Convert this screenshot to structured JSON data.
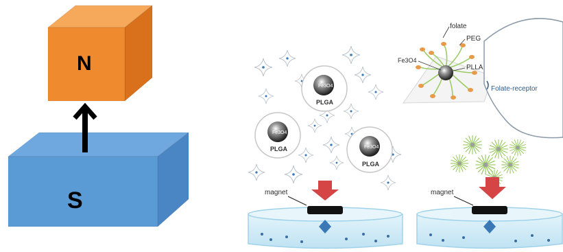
{
  "magnets": {
    "north_label": "N",
    "south_label": "S"
  },
  "particles": {
    "core_label": "Fe3O4",
    "shell_label": "PLGA"
  },
  "nanoparticle": {
    "folate_label": "folate",
    "peg_label": "PEG",
    "core_label": "Fe3O4",
    "plla_label": "PLLA",
    "receptor_label": "Folate-receptor"
  },
  "panels": {
    "magnet_label": "magnet"
  },
  "colors": {
    "north_front": "#f08a2e",
    "north_top": "#f6a95a",
    "north_side": "#d8701c",
    "south_front": "#5b9bd5",
    "south_top": "#6ea8df",
    "south_side": "#4a86c3",
    "arrow_red": "#d64545",
    "water": "#cfeaf6",
    "diamond": "#3a78b6"
  }
}
